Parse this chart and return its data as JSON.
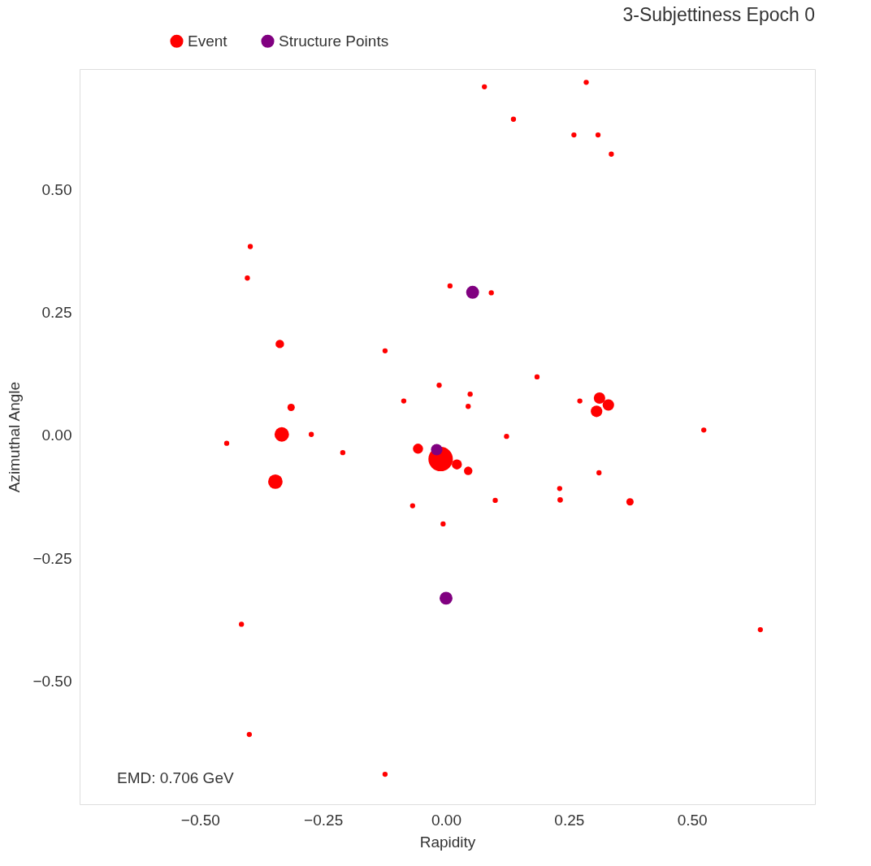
{
  "chart_data": {
    "type": "bubble",
    "title": "3-Subjettiness Epoch 0",
    "xlabel": "Rapidity",
    "ylabel": "Azimuthal Angle",
    "annotations": [
      "EMD: 0.706 GeV"
    ],
    "xlim": [
      -0.745,
      0.75
    ],
    "ylim": [
      -0.75,
      0.745
    ],
    "xticks": [
      {
        "value": -0.5,
        "label": "−0.50"
      },
      {
        "value": -0.25,
        "label": "−0.25"
      },
      {
        "value": 0,
        "label": "0.00"
      },
      {
        "value": 0.25,
        "label": "0.25"
      },
      {
        "value": 0.5,
        "label": "0.50"
      }
    ],
    "yticks": [
      {
        "value": -0.5,
        "label": "−0.50"
      },
      {
        "value": -0.25,
        "label": "−0.25"
      },
      {
        "value": 0,
        "label": "0.00"
      },
      {
        "value": 0.25,
        "label": "0.25"
      },
      {
        "value": 0.5,
        "label": "0.50"
      }
    ],
    "grid": false,
    "legend": "top",
    "marker": "circle",
    "series": [
      {
        "type": "scatter",
        "color": "#ff0000",
        "x": [
          0.231,
          0.272,
          -0.446,
          -0.274,
          -0.21,
          0.008,
          0.092,
          0.049,
          0.045,
          0.123,
          -0.068,
          -0.006,
          0.285,
          0.26,
          0.336,
          0.309,
          0.078,
          0.137,
          -0.398,
          -0.404,
          -0.124,
          -0.014,
          -0.086,
          0.185,
          0.524,
          0.311,
          0.1,
          -0.416,
          0.639,
          -0.4,
          -0.124
        ],
        "values": [
          -0.108,
          0.07,
          -0.016,
          0.002,
          -0.035,
          0.304,
          0.29,
          0.084,
          0.059,
          -0.002,
          -0.143,
          -0.18,
          0.718,
          0.611,
          0.572,
          0.611,
          0.709,
          0.643,
          0.384,
          0.32,
          0.172,
          0.102,
          0.07,
          0.119,
          0.011,
          -0.076,
          -0.132,
          -0.384,
          -0.395,
          -0.608,
          -0.689
        ]
      },
      {
        "name": "Event",
        "color": "#ff0000",
        "x": [
          -0.011,
          -0.334,
          -0.347,
          -0.338,
          -0.315,
          -0.057,
          0.022,
          0.045,
          0.312,
          0.33,
          0.306,
          0.374,
          0.232
        ],
        "values": [
          -0.048,
          0.002,
          -0.094,
          0.186,
          0.057,
          -0.027,
          -0.059,
          -0.072,
          0.076,
          0.062,
          0.049,
          -0.135,
          -0.131
        ],
        "sizes": [
          1,
          0.35,
          0.35,
          0.12,
          0.09,
          0.17,
          0.17,
          0.12,
          0.22,
          0.22,
          0.22,
          0.09,
          0.05
        ]
      },
      {
        "name": "Structure Points",
        "color": "#800080",
        "x": [
          0.054,
          -0.019,
          0.0
        ],
        "values": [
          0.291,
          -0.029,
          -0.331
        ],
        "sizes": [
          0.28,
          0.22,
          0.28
        ]
      }
    ]
  }
}
